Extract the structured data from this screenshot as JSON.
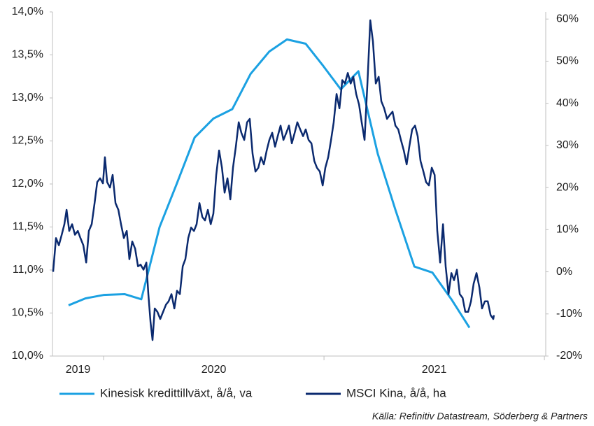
{
  "chart_data": {
    "type": "line",
    "xlim": [
      2019.768,
      2022.006
    ],
    "xticks": [
      2020,
      2021,
      2022
    ],
    "year_labels": [
      "2019",
      "2020",
      "2021"
    ],
    "ylim": [
      10,
      14
    ],
    "yticks": [
      {
        "value": 10,
        "label": "10,0%"
      },
      {
        "value": 10.5,
        "label": "10,5%"
      },
      {
        "value": 11,
        "label": "11,0%"
      },
      {
        "value": 11.5,
        "label": "11,5%"
      },
      {
        "value": 12,
        "label": "12,0%"
      },
      {
        "value": 12.5,
        "label": "12,5%"
      },
      {
        "value": 13,
        "label": "13,0%"
      },
      {
        "value": 13.5,
        "label": "13,5%"
      },
      {
        "value": 14,
        "label": "14,0%"
      }
    ],
    "y2lim": [
      -20,
      61.7
    ],
    "y2ticks": [
      {
        "value": -20,
        "label": "-20%"
      },
      {
        "value": -10,
        "label": "-10%"
      },
      {
        "value": 0,
        "label": "0%"
      },
      {
        "value": 10,
        "label": "10%"
      },
      {
        "value": 20,
        "label": "20%"
      },
      {
        "value": 30,
        "label": "30%"
      },
      {
        "value": 40,
        "label": "40%"
      },
      {
        "value": 50,
        "label": "50%"
      },
      {
        "value": 60,
        "label": "60%"
      }
    ],
    "legend": "bottom",
    "source": "Källa: Refinitiv Datastream, Söderberg & Partners",
    "series": [
      {
        "name": "Kinesisk kredittillväxt, å/å, va",
        "color": "#1ba1e2",
        "axis": "y",
        "x": [
          2019.841,
          2019.917,
          2020.0,
          2020.095,
          2020.171,
          2020.254,
          2020.333,
          2020.413,
          2020.498,
          2020.584,
          2020.667,
          2020.752,
          2020.832,
          2020.917,
          2020.997,
          2021.076,
          2021.156,
          2021.244,
          2021.324,
          2021.41,
          2021.492,
          2021.578,
          2021.66
        ],
        "values": [
          10.59,
          10.67,
          10.71,
          10.72,
          10.66,
          11.5,
          12.01,
          12.54,
          12.76,
          12.87,
          13.28,
          13.54,
          13.68,
          13.63,
          13.37,
          13.1,
          13.31,
          12.35,
          11.7,
          11.04,
          10.97,
          10.66,
          10.33
        ]
      },
      {
        "name": "MSCI Kina, å/å, ha",
        "color": "#0b2a6f",
        "axis": "y2",
        "x": [
          2019.771,
          2019.784,
          2019.797,
          2019.81,
          2019.822,
          2019.832,
          2019.844,
          2019.857,
          2019.87,
          2019.883,
          2019.895,
          2019.908,
          2019.921,
          2019.933,
          2019.946,
          2019.959,
          2019.971,
          2019.984,
          2019.997,
          2020.006,
          2020.016,
          2020.029,
          2020.041,
          2020.054,
          2020.067,
          2020.079,
          2020.092,
          2020.105,
          2020.117,
          2020.13,
          2020.143,
          2020.156,
          2020.168,
          2020.181,
          2020.194,
          2020.203,
          2020.213,
          2020.222,
          2020.232,
          2020.244,
          2020.257,
          2020.27,
          2020.283,
          2020.295,
          2020.308,
          2020.321,
          2020.333,
          2020.346,
          2020.359,
          2020.371,
          2020.384,
          2020.397,
          2020.41,
          2020.422,
          2020.435,
          2020.448,
          2020.46,
          2020.473,
          2020.486,
          2020.498,
          2020.511,
          2020.524,
          2020.537,
          2020.549,
          2020.562,
          2020.575,
          2020.587,
          2020.6,
          2020.613,
          2020.625,
          2020.638,
          2020.651,
          2020.663,
          2020.676,
          2020.689,
          2020.702,
          2020.714,
          2020.727,
          2020.74,
          2020.752,
          2020.765,
          2020.778,
          2020.79,
          2020.803,
          2020.816,
          2020.829,
          2020.841,
          2020.854,
          2020.867,
          2020.879,
          2020.892,
          2020.905,
          2020.917,
          2020.93,
          2020.943,
          2020.956,
          2020.968,
          2020.981,
          2020.994,
          2021.006,
          2021.019,
          2021.032,
          2021.044,
          2021.057,
          2021.07,
          2021.083,
          2021.095,
          2021.108,
          2021.121,
          2021.133,
          2021.146,
          2021.159,
          2021.171,
          2021.184,
          2021.197,
          2021.21,
          2021.222,
          2021.235,
          2021.248,
          2021.26,
          2021.273,
          2021.286,
          2021.298,
          2021.311,
          2021.324,
          2021.337,
          2021.349,
          2021.362,
          2021.375,
          2021.387,
          2021.4,
          2021.413,
          2021.425,
          2021.438,
          2021.451,
          2021.463,
          2021.476,
          2021.489,
          2021.502,
          2021.514,
          2021.527,
          2021.54,
          2021.552,
          2021.565,
          2021.578,
          2021.59,
          2021.603,
          2021.616,
          2021.629,
          2021.641,
          2021.654,
          2021.667,
          2021.679,
          2021.692,
          2021.705,
          2021.717,
          2021.73,
          2021.743,
          2021.756,
          2021.768,
          2021.771
        ],
        "values": [
          0,
          8.0,
          6.3,
          8.8,
          11.3,
          14.7,
          9.7,
          11.3,
          8.8,
          9.7,
          8.0,
          6.3,
          2.2,
          9.7,
          11.3,
          16.3,
          21.3,
          22.2,
          21.0,
          27.2,
          21.3,
          20.0,
          23.0,
          16.3,
          14.7,
          11.3,
          8.0,
          9.7,
          3.0,
          7.2,
          5.5,
          1.3,
          1.7,
          0.5,
          2.2,
          -5.3,
          -12.0,
          -16.2,
          -8.7,
          -9.5,
          -11.2,
          -9.5,
          -7.8,
          -7.0,
          -5.3,
          -8.7,
          -4.5,
          -5.3,
          1.3,
          3.0,
          8.0,
          10.5,
          9.7,
          11.3,
          16.3,
          13.0,
          12.2,
          14.7,
          11.3,
          13.8,
          23.0,
          28.8,
          24.7,
          18.8,
          22.2,
          17.2,
          24.7,
          29.7,
          35.5,
          33.0,
          31.3,
          35.5,
          36.3,
          28.0,
          23.8,
          24.7,
          27.2,
          25.5,
          28.8,
          31.3,
          33.0,
          29.7,
          32.2,
          34.7,
          31.3,
          33.0,
          34.7,
          30.5,
          33.0,
          35.5,
          33.8,
          32.2,
          33.8,
          31.3,
          30.5,
          26.3,
          24.7,
          23.8,
          20.5,
          24.7,
          27.2,
          31.3,
          35.5,
          42.2,
          38.8,
          45.5,
          44.7,
          47.2,
          44.7,
          46.3,
          42.2,
          39.7,
          35.5,
          31.3,
          44.7,
          59.7,
          54.7,
          44.7,
          46.3,
          40.5,
          38.8,
          36.3,
          37.2,
          38.0,
          34.7,
          33.8,
          31.3,
          28.8,
          25.5,
          29.7,
          33.8,
          34.7,
          32.2,
          26.3,
          23.8,
          21.3,
          20.5,
          24.7,
          23.0,
          9.7,
          2.2,
          11.3,
          1.3,
          -5.3,
          -0.3,
          -2.0,
          0.5,
          -5.3,
          -6.2,
          -9.5,
          -9.5,
          -7.0,
          -2.8,
          -0.3,
          -3.7,
          -8.7,
          -7.0,
          -7.0,
          -10.3,
          -11.2,
          -10.3
        ]
      }
    ]
  }
}
